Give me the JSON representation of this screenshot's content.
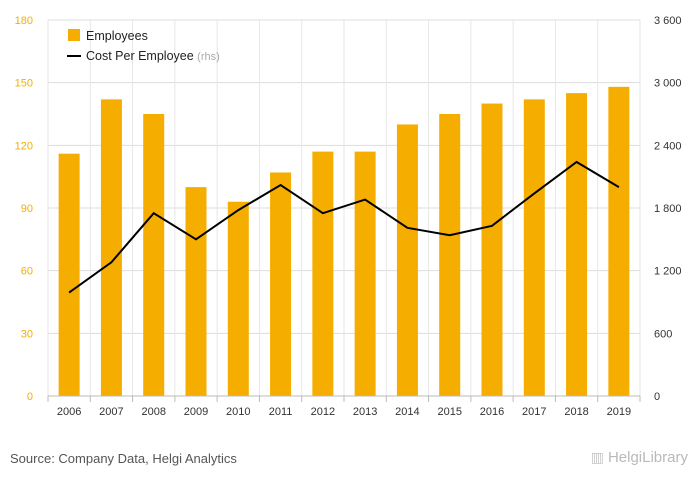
{
  "chart_data": {
    "type": "bar+line",
    "categories": [
      "2006",
      "2007",
      "2008",
      "2009",
      "2010",
      "2011",
      "2012",
      "2013",
      "2014",
      "2015",
      "2016",
      "2017",
      "2018",
      "2019"
    ],
    "series": [
      {
        "name": "Employees",
        "type": "bar",
        "axis": "left",
        "color": "#f5ae00",
        "values": [
          116,
          142,
          135,
          100,
          93,
          107,
          117,
          117,
          130,
          135,
          140,
          142,
          145,
          148
        ]
      },
      {
        "name": "Cost Per Employee",
        "name_suffix": "(rhs)",
        "type": "line",
        "axis": "right",
        "color": "#000000",
        "values": [
          990,
          1280,
          1750,
          1500,
          1780,
          2020,
          1750,
          1880,
          1610,
          1540,
          1630,
          1940,
          2240,
          2000
        ]
      }
    ],
    "y_left": {
      "min": 0,
      "max": 180,
      "ticks": [
        "0",
        "30",
        "60",
        "90",
        "120",
        "150",
        "180"
      ],
      "tick_color": "#f5ae00"
    },
    "y_right": {
      "min": 0,
      "max": 3600,
      "ticks": [
        "0",
        "600",
        "1 200",
        "1 800",
        "2 400",
        "3 000",
        "3 600"
      ]
    },
    "grid": true,
    "legend_position": "top-left"
  },
  "footer": {
    "source": "Source: Company Data, Helgi Analytics",
    "brand": "HelgiLibrary",
    "brand_icon": "library-icon"
  }
}
